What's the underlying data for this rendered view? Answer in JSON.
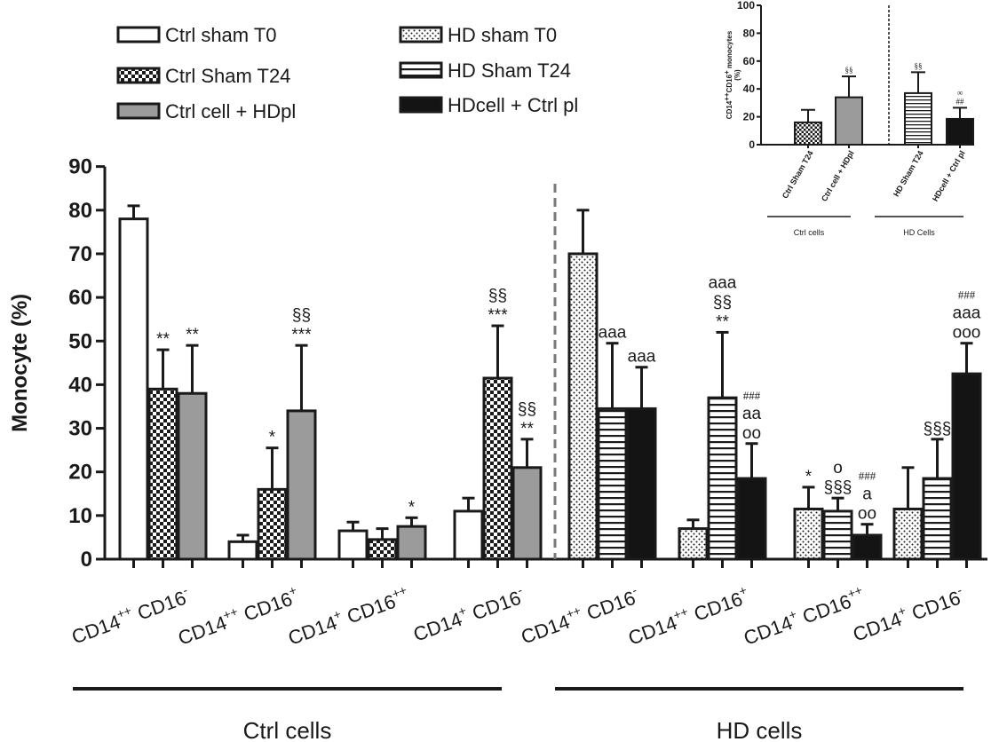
{
  "chart_data": {
    "type": "bar",
    "ylabel": "Monocyte (%)",
    "ylim": [
      0,
      90
    ],
    "yticks": [
      0,
      10,
      20,
      30,
      40,
      50,
      60,
      70,
      80,
      90
    ],
    "legend": [
      {
        "label": "Ctrl sham T0",
        "pattern": "white"
      },
      {
        "label": "Ctrl Sham T24",
        "pattern": "checker"
      },
      {
        "label": "Ctrl cell + HDpl",
        "pattern": "gray"
      },
      {
        "label": "HD sham T0",
        "pattern": "dots"
      },
      {
        "label": "HD Sham T24",
        "pattern": "hstripes"
      },
      {
        "label": "HDcell + Ctrl pl",
        "pattern": "black"
      }
    ],
    "groups": [
      {
        "label": "Ctrl cells",
        "categories": [
          {
            "base": "CD14",
            "sup1": "++",
            "mid": " CD16",
            "sup2": "-",
            "bars": [
              {
                "series": "Ctrl sham T0",
                "pattern": "white",
                "value": 78,
                "error": 3,
                "annot": []
              },
              {
                "series": "Ctrl Sham T24",
                "pattern": "checker",
                "value": 39,
                "error": 9,
                "annot": [
                  "**"
                ]
              },
              {
                "series": "Ctrl cell + HDpl",
                "pattern": "gray",
                "value": 38,
                "error": 11,
                "annot": [
                  "**"
                ]
              }
            ]
          },
          {
            "base": "CD14",
            "sup1": "++",
            "mid": " CD16",
            "sup2": "+",
            "bars": [
              {
                "series": "Ctrl sham T0",
                "pattern": "white",
                "value": 4,
                "error": 1.5,
                "annot": []
              },
              {
                "series": "Ctrl Sham T24",
                "pattern": "checker",
                "value": 16,
                "error": 9.5,
                "annot": [
                  "*"
                ]
              },
              {
                "series": "Ctrl cell + HDpl",
                "pattern": "gray",
                "value": 34,
                "error": 15,
                "annot": [
                  "§§",
                  "***"
                ]
              }
            ]
          },
          {
            "base": "CD14",
            "sup1": "+",
            "mid": " CD16",
            "sup2": "++",
            "bars": [
              {
                "series": "Ctrl sham T0",
                "pattern": "white",
                "value": 6.5,
                "error": 2,
                "annot": []
              },
              {
                "series": "Ctrl Sham T24",
                "pattern": "checker",
                "value": 4.5,
                "error": 2.5,
                "annot": []
              },
              {
                "series": "Ctrl cell + HDpl",
                "pattern": "gray",
                "value": 7.5,
                "error": 2,
                "annot": [
                  "*"
                ]
              }
            ]
          },
          {
            "base": "CD14",
            "sup1": "+",
            "mid": " CD16",
            "sup2": "-",
            "bars": [
              {
                "series": "Ctrl sham T0",
                "pattern": "white",
                "value": 11,
                "error": 3,
                "annot": []
              },
              {
                "series": "Ctrl Sham T24",
                "pattern": "checker",
                "value": 41.5,
                "error": 12,
                "annot": [
                  "§§",
                  "***"
                ]
              },
              {
                "series": "Ctrl cell + HDpl",
                "pattern": "gray",
                "value": 21,
                "error": 6.5,
                "annot": [
                  "§§",
                  "**"
                ]
              }
            ]
          }
        ]
      },
      {
        "label": "HD cells",
        "categories": [
          {
            "base": "CD14",
            "sup1": "++",
            "mid": " CD16",
            "sup2": "-",
            "bars": [
              {
                "series": "HD sham T0",
                "pattern": "dots",
                "value": 70,
                "error": 10,
                "annot": []
              },
              {
                "series": "HD Sham T24",
                "pattern": "hstripes",
                "value": 34.5,
                "error": 15,
                "annot": [
                  "aaa"
                ]
              },
              {
                "series": "HDcell + Ctrl pl",
                "pattern": "black",
                "value": 34.5,
                "error": 9.5,
                "annot": [
                  "aaa"
                ]
              }
            ]
          },
          {
            "base": "CD14",
            "sup1": "++",
            "mid": " CD16",
            "sup2": "+",
            "bars": [
              {
                "series": "HD sham T0",
                "pattern": "dots",
                "value": 7,
                "error": 2,
                "annot": []
              },
              {
                "series": "HD Sham T24",
                "pattern": "hstripes",
                "value": 37,
                "error": 15,
                "annot": [
                  "aaa",
                  "§§",
                  "**"
                ]
              },
              {
                "series": "HDcell + Ctrl pl",
                "pattern": "black",
                "value": 18.5,
                "error": 8,
                "annot": [
                  "###",
                  "aa",
                  "oo"
                ]
              }
            ]
          },
          {
            "base": "CD14",
            "sup1": "+",
            "mid": " CD16",
            "sup2": "++",
            "bars": [
              {
                "series": "HD sham T0",
                "pattern": "dots",
                "value": 11.5,
                "error": 5,
                "annot": [
                  "*"
                ]
              },
              {
                "series": "HD Sham T24",
                "pattern": "hstripes",
                "value": 11,
                "error": 3,
                "annot": [
                  "o",
                  "§§§"
                ]
              },
              {
                "series": "HDcell + Ctrl pl",
                "pattern": "black",
                "value": 5.5,
                "error": 2.5,
                "annot": [
                  "###",
                  "a",
                  "oo"
                ]
              }
            ]
          },
          {
            "base": "CD14",
            "sup1": "+",
            "mid": " CD16",
            "sup2": "-",
            "bars": [
              {
                "series": "HD sham T0",
                "pattern": "dots",
                "value": 11.5,
                "error": 9.5,
                "annot": []
              },
              {
                "series": "HD Sham T24",
                "pattern": "hstripes",
                "value": 18.5,
                "error": 9,
                "annot": [
                  "§§§"
                ]
              },
              {
                "series": "HDcell + Ctrl pl",
                "pattern": "black",
                "value": 42.5,
                "error": 7,
                "annot": [
                  "###",
                  "aaa",
                  "ooo"
                ]
              }
            ]
          }
        ]
      }
    ],
    "inset": {
      "type": "bar",
      "ylabel_main": "CD14",
      "ylabel_sup1": "++",
      "ylabel_mid": "CD16",
      "ylabel_sup2": "+",
      "ylabel_end": " monocytes",
      "ylabel_unit": "(%)",
      "ylim": [
        0,
        100
      ],
      "yticks": [
        0,
        20,
        40,
        60,
        80,
        100
      ],
      "bars": [
        {
          "label": "Ctrl Sham T24",
          "pattern": "checker",
          "value": 16,
          "error": 9,
          "annot": []
        },
        {
          "label": "Ctrl cell + HDpl",
          "pattern": "gray",
          "value": 34,
          "error": 15,
          "annot": [
            "§§"
          ]
        },
        {
          "label": "HD Sham T24",
          "pattern": "hstripes",
          "value": 37,
          "error": 15,
          "annot": [
            "§§"
          ]
        },
        {
          "label": "HDcell + Ctrl pl",
          "pattern": "black",
          "value": 18.5,
          "error": 8,
          "annot": [
            "∞",
            "##"
          ]
        }
      ],
      "groups": [
        "Ctrl cells",
        "HD Cells"
      ]
    }
  }
}
